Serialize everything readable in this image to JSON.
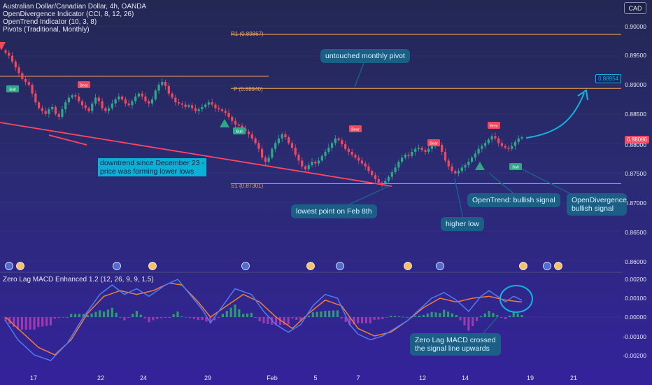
{
  "chart_data": [
    {
      "type": "candlestick",
      "title": "Australian Dollar/Canadian Dollar, 4h, OANDA",
      "indicators": [
        "OpenDivergence Indicator (CCI, 8, 12, 26)",
        "OpenTrend Indicator (10, 3, 8)",
        "Pivots (Traditional, Monthly)"
      ],
      "currency": "CAD",
      "y_ticks": [
        "0.90000",
        "0.89500",
        "0.89000",
        "0.88500",
        "0.88000",
        "0.87500",
        "0.87000",
        "0.86500",
        "0.86000"
      ],
      "ylim": [
        0.859,
        0.902
      ],
      "last_price": "0.88086",
      "target_price": "0.88954",
      "pivots": [
        {
          "label": "R1 (0.89867)",
          "value": 0.89867
        },
        {
          "label": "P (0.88940)",
          "value": 0.8894
        },
        {
          "label": "S1 (0.87301)",
          "value": 0.87301
        }
      ],
      "close_series": [
        0.8955,
        0.895,
        0.894,
        0.893,
        0.892,
        0.891,
        0.8905,
        0.89,
        0.8885,
        0.887,
        0.886,
        0.8855,
        0.885,
        0.8858,
        0.8862,
        0.885,
        0.8845,
        0.8858,
        0.887,
        0.8878,
        0.8882,
        0.888,
        0.8872,
        0.8865,
        0.886,
        0.8855,
        0.8868,
        0.8878,
        0.8872,
        0.886,
        0.8855,
        0.886,
        0.8868,
        0.8875,
        0.888,
        0.8875,
        0.8868,
        0.8865,
        0.8872,
        0.888,
        0.8885,
        0.888,
        0.8872,
        0.8868,
        0.8875,
        0.889,
        0.89,
        0.8905,
        0.8898,
        0.8885,
        0.8878,
        0.887,
        0.8868,
        0.8866,
        0.8862,
        0.8865,
        0.886,
        0.8855,
        0.8858,
        0.8862,
        0.8866,
        0.887,
        0.8866,
        0.886,
        0.8858,
        0.8855,
        0.8852,
        0.8845,
        0.8838,
        0.8832,
        0.883,
        0.8825,
        0.882,
        0.8815,
        0.8808,
        0.88,
        0.879,
        0.8775,
        0.8768,
        0.8775,
        0.879,
        0.88,
        0.8808,
        0.8815,
        0.881,
        0.88,
        0.8792,
        0.878,
        0.877,
        0.876,
        0.8755,
        0.8762,
        0.8768,
        0.8765,
        0.877,
        0.8778,
        0.8785,
        0.8792,
        0.88,
        0.8808,
        0.8805,
        0.8798,
        0.879,
        0.8785,
        0.878,
        0.8775,
        0.877,
        0.8765,
        0.876,
        0.8752,
        0.8745,
        0.8738,
        0.8732,
        0.873,
        0.8735,
        0.8742,
        0.875,
        0.8758,
        0.8768,
        0.8775,
        0.878,
        0.8778,
        0.8785,
        0.879,
        0.8792,
        0.8788,
        0.8785,
        0.879,
        0.8795,
        0.88,
        0.8797,
        0.8785,
        0.877,
        0.876,
        0.8752,
        0.8748,
        0.8752,
        0.8758,
        0.8762,
        0.8768,
        0.8775,
        0.8782,
        0.879,
        0.8795,
        0.88,
        0.8806,
        0.8812,
        0.8808,
        0.88,
        0.8795,
        0.8792,
        0.879,
        0.8795,
        0.8802,
        0.8808,
        0.881
      ],
      "annotations": {
        "untouched": "untouched monthly pivot",
        "downtrend_1": "downtrend since December 23 -",
        "downtrend_2": "price was forming lower lows",
        "lowest": "lowest point on Feb 8th",
        "higher_low": "higher low",
        "opentrend": "OpenTrend: bullish signal",
        "opendiv_1": "OpenDivergence",
        "opendiv_2": "bullish signal",
        "signal_bull": "Bull",
        "signal_bear": "Bear"
      }
    },
    {
      "type": "macd",
      "title": "Zero Lag MACD Enhanced 1.2 (12, 26, 9, 9, 1.5)",
      "y_ticks": [
        "0.00200",
        "0.00100",
        "0.00000",
        "-0.00100",
        "-0.00200"
      ],
      "ylim": [
        -0.0024,
        0.0024
      ],
      "macd_points": [
        [
          0,
          -0.0002
        ],
        [
          6,
          -0.0012
        ],
        [
          14,
          -0.002
        ],
        [
          22,
          -0.0023
        ],
        [
          30,
          -0.0014
        ],
        [
          38,
          0.0
        ],
        [
          46,
          0.0012
        ],
        [
          52,
          0.0017
        ],
        [
          58,
          0.0012
        ],
        [
          64,
          0.0015
        ],
        [
          70,
          0.0011
        ],
        [
          78,
          0.0017
        ],
        [
          84,
          0.002
        ],
        [
          90,
          0.0012
        ],
        [
          96,
          0.0004
        ],
        [
          100,
          -0.0003
        ],
        [
          106,
          0.0006
        ],
        [
          112,
          0.0015
        ],
        [
          120,
          0.0012
        ],
        [
          126,
          0.0003
        ],
        [
          132,
          -0.0004
        ],
        [
          138,
          -0.0008
        ],
        [
          144,
          -0.0004
        ],
        [
          150,
          0.0006
        ],
        [
          156,
          0.0012
        ],
        [
          162,
          0.001
        ],
        [
          168,
          -0.0004
        ],
        [
          172,
          -0.0009
        ],
        [
          178,
          -0.0012
        ],
        [
          184,
          -0.001
        ],
        [
          190,
          -0.0006
        ],
        [
          196,
          -0.0002
        ],
        [
          202,
          0.0004
        ],
        [
          208,
          0.001
        ],
        [
          214,
          0.0013
        ],
        [
          220,
          0.0009
        ],
        [
          226,
          0.0003
        ],
        [
          232,
          0.0011
        ],
        [
          236,
          0.0014
        ],
        [
          240,
          0.0011
        ],
        [
          244,
          0.0008
        ],
        [
          248,
          0.0011
        ],
        [
          252,
          0.0009
        ]
      ],
      "signal_points": [
        [
          0,
          0.0
        ],
        [
          8,
          -0.0008
        ],
        [
          16,
          -0.0016
        ],
        [
          24,
          -0.002
        ],
        [
          32,
          -0.0012
        ],
        [
          40,
          0.0002
        ],
        [
          48,
          0.0011
        ],
        [
          56,
          0.0014
        ],
        [
          64,
          0.0012
        ],
        [
          72,
          0.0014
        ],
        [
          80,
          0.0018
        ],
        [
          86,
          0.0017
        ],
        [
          94,
          0.0008
        ],
        [
          100,
          0.0
        ],
        [
          108,
          0.0006
        ],
        [
          116,
          0.0012
        ],
        [
          124,
          0.0008
        ],
        [
          132,
          0.0
        ],
        [
          140,
          -0.0006
        ],
        [
          148,
          0.0002
        ],
        [
          156,
          0.0009
        ],
        [
          164,
          0.0006
        ],
        [
          172,
          -0.0006
        ],
        [
          180,
          -0.001
        ],
        [
          188,
          -0.0008
        ],
        [
          196,
          -0.0002
        ],
        [
          204,
          0.0005
        ],
        [
          212,
          0.001
        ],
        [
          220,
          0.0008
        ],
        [
          228,
          0.001
        ],
        [
          236,
          0.0011
        ],
        [
          244,
          0.0009
        ],
        [
          252,
          0.0008
        ]
      ],
      "annotation": [
        "Zero Lag MACD crossed",
        "the signal line upwards"
      ]
    }
  ],
  "x_ticks": [
    "17",
    "22",
    "24",
    "29",
    "Feb",
    "5",
    "7",
    "12",
    "14",
    "19",
    "21"
  ],
  "colors": {
    "up": "#2fa889",
    "down": "#f0495f",
    "pivot": "#f0a45a",
    "trend": "#ff4560",
    "macd": "#4c7cf4",
    "signal": "#f27c35",
    "hist_pos": "#2bb06d",
    "hist_neg": "#b23db9",
    "arrow": "#11b3e0"
  }
}
